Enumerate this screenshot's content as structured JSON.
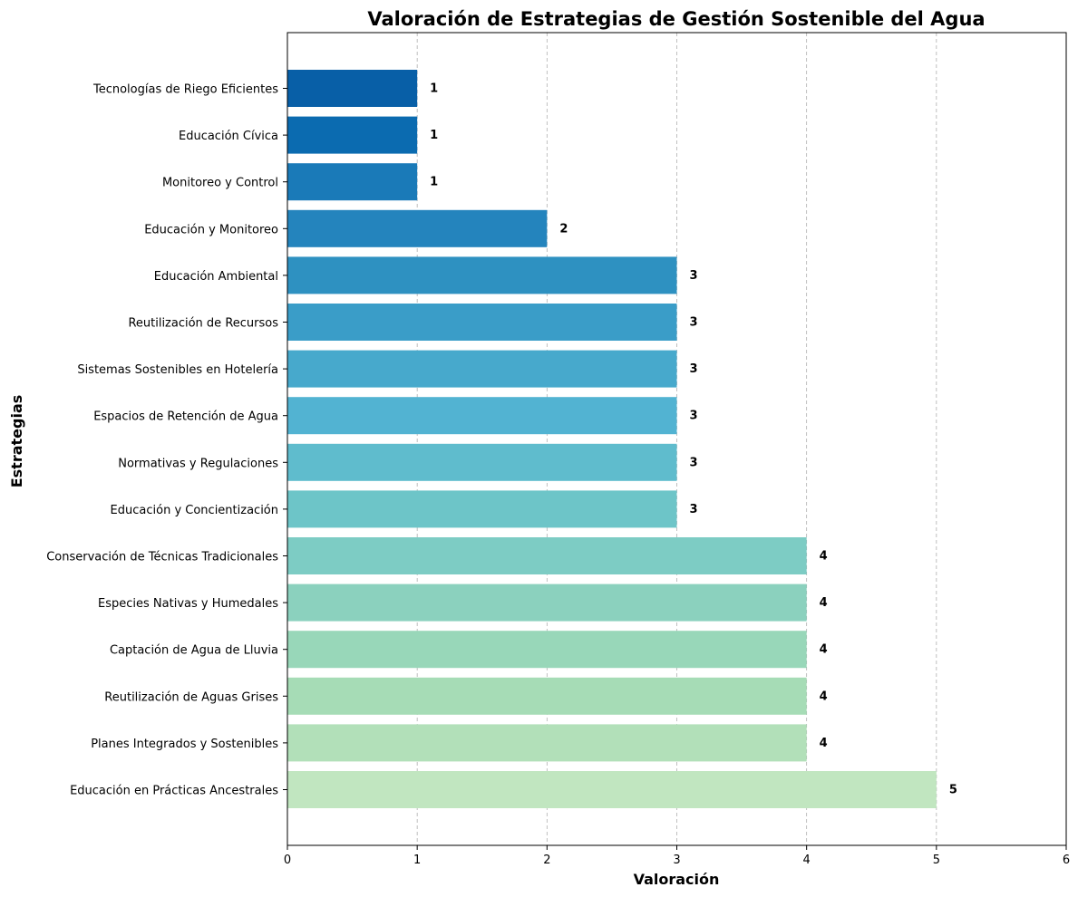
{
  "chart_data": {
    "type": "bar",
    "orientation": "horizontal",
    "title": "Valoración de Estrategias de Gestión Sostenible del Agua",
    "xlabel": "Valoración",
    "ylabel": "Estrategias",
    "xlim": [
      0,
      6
    ],
    "xticks": [
      "0",
      "1",
      "2",
      "3",
      "4",
      "5",
      "6"
    ],
    "grid": "x, dashed",
    "categories": [
      "Tecnologías de Riego Eficientes",
      "Educación Cívica",
      "Monitoreo y Control",
      "Educación y Monitoreo",
      "Educación Ambiental",
      "Reutilización de Recursos",
      "Sistemas Sostenibles en Hotelería",
      "Espacios de Retención de Agua",
      "Normativas y Regulaciones",
      "Educación y Concientización",
      "Conservación de Técnicas Tradicionales",
      "Especies Nativas y Humedales",
      "Captación de Agua de Lluvia",
      "Reutilización de Aguas Grises",
      "Planes Integrados y Sostenibles",
      "Educación en Prácticas Ancestrales"
    ],
    "values": [
      1,
      1,
      1,
      2,
      3,
      3,
      3,
      3,
      3,
      3,
      4,
      4,
      4,
      4,
      4,
      5
    ],
    "value_labels": [
      "1",
      "1",
      "1",
      "2",
      "3",
      "3",
      "3",
      "3",
      "3",
      "3",
      "4",
      "4",
      "4",
      "4",
      "4",
      "5"
    ],
    "colors": [
      "#085fa7",
      "#0b6bb0",
      "#1a7ab8",
      "#2484bd",
      "#2e91c1",
      "#3a9dc8",
      "#47a9cc",
      "#52b3d2",
      "#5fbccd",
      "#6dc5c8",
      "#7dccc4",
      "#8bd1be",
      "#98d7b9",
      "#a6dcb6",
      "#b2e0b9",
      "#c1e6c0"
    ],
    "axis_color": "#000000",
    "grid_color": "#b0b0b0"
  }
}
